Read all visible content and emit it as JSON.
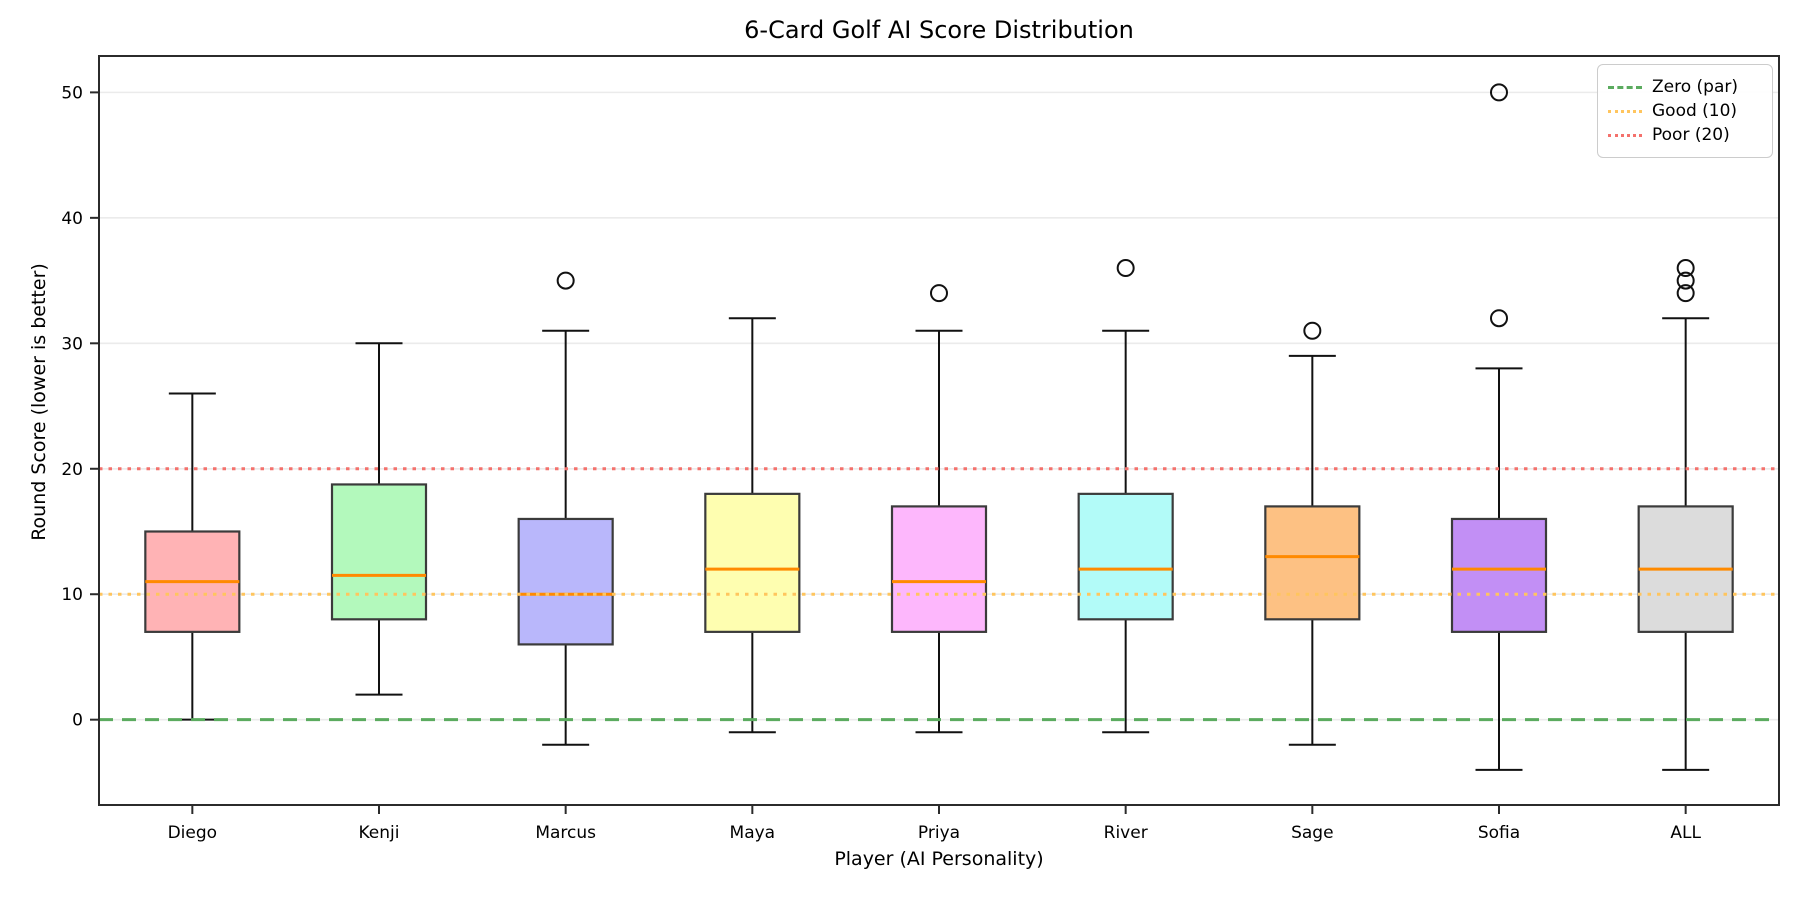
{
  "chart_data": {
    "type": "boxplot",
    "title": "6-Card Golf AI Score Distribution",
    "xlabel": "Player (AI Personality)",
    "ylabel": "Round Score (lower is better)",
    "categories": [
      "Diego",
      "Kenji",
      "Marcus",
      "Maya",
      "Priya",
      "River",
      "Sage",
      "Sofia",
      "ALL"
    ],
    "boxes": [
      {
        "player": "Diego",
        "whisker_low": 0,
        "q1": 7,
        "median": 11,
        "q3": 15,
        "whisker_high": 26,
        "outliers": [],
        "fill": "#FFB3B5"
      },
      {
        "player": "Kenji",
        "whisker_low": 2,
        "q1": 8,
        "median": 11.5,
        "q3": 18.75,
        "whisker_high": 30,
        "outliers": [],
        "fill": "#B3F9BC"
      },
      {
        "player": "Marcus",
        "whisker_low": -2,
        "q1": 6,
        "median": 10,
        "q3": 16,
        "whisker_high": 31,
        "outliers": [
          35
        ],
        "fill": "#B9B7FB"
      },
      {
        "player": "Maya",
        "whisker_low": -1,
        "q1": 7,
        "median": 12,
        "q3": 18,
        "whisker_high": 32,
        "outliers": [],
        "fill": "#FEFEB0"
      },
      {
        "player": "Priya",
        "whisker_low": -1,
        "q1": 7,
        "median": 11,
        "q3": 17,
        "whisker_high": 31,
        "outliers": [
          34
        ],
        "fill": "#FDB7FC"
      },
      {
        "player": "River",
        "whisker_low": -1,
        "q1": 8,
        "median": 12,
        "q3": 18,
        "whisker_high": 31,
        "outliers": [
          36
        ],
        "fill": "#B2FBF8"
      },
      {
        "player": "Sage",
        "whisker_low": -2,
        "q1": 8,
        "median": 13,
        "q3": 17,
        "whisker_high": 29,
        "outliers": [
          31
        ],
        "fill": "#FDC183"
      },
      {
        "player": "Sofia",
        "whisker_low": -4,
        "q1": 7,
        "median": 12,
        "q3": 16,
        "whisker_high": 28,
        "outliers": [
          32,
          50
        ],
        "fill": "#C28FF5"
      },
      {
        "player": "ALL",
        "whisker_low": -4,
        "q1": 7,
        "median": 12,
        "q3": 17,
        "whisker_high": 32,
        "outliers": [
          34,
          35,
          36
        ],
        "fill": "#DCDCDC"
      }
    ],
    "yticks": [
      0,
      10,
      20,
      30,
      40,
      50
    ],
    "ylim": [
      -6.8,
      52.9
    ],
    "grid": "horizontal",
    "reference_lines": [
      {
        "value": 0,
        "label": "Zero (par)",
        "style": "dashed",
        "color": "#5BAB5F"
      },
      {
        "value": 10,
        "label": "Good (10)",
        "style": "dotted",
        "color": "#FFC55E"
      },
      {
        "value": 20,
        "label": "Poor (20)",
        "style": "dotted",
        "color": "#F4716C"
      }
    ],
    "legend_position": "upper right",
    "style_colors": {
      "median": "#FF8A00",
      "box_edge": "#3B3B3B",
      "whisker": "#111111",
      "grid": "#EBEBEB",
      "spine": "#2B2B2B"
    }
  },
  "legend": {
    "items": [
      {
        "label": "Zero (par)"
      },
      {
        "label": "Good (10)"
      },
      {
        "label": "Poor (20)"
      }
    ]
  }
}
